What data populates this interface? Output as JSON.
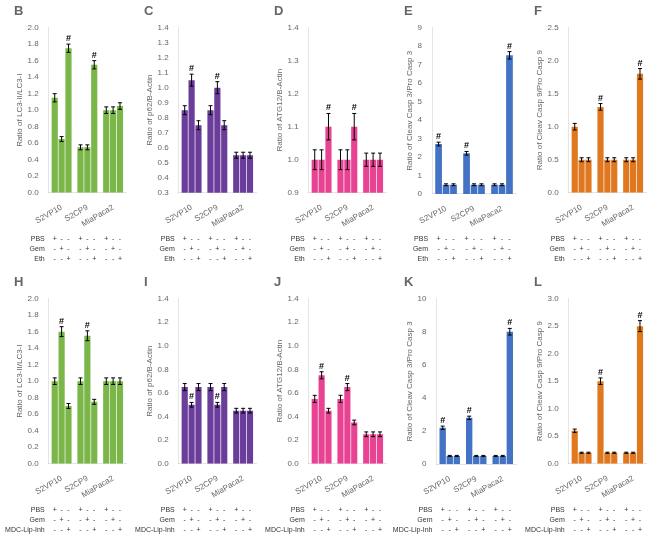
{
  "chart_data": [
    {
      "type": "bar",
      "title": "B",
      "ylabel": "Ratio of LC3-II/LC3-I",
      "categories": [
        "S2VP10",
        "S2CP9",
        "MiaPaca2"
      ],
      "series": [
        {
          "name": "PBS",
          "values": [
            1.15,
            0.55,
            1.0
          ],
          "errors": [
            0.05,
            0.03,
            0.04
          ]
        },
        {
          "name": "Gem",
          "values": [
            0.65,
            0.55,
            1.0
          ],
          "errors": [
            0.03,
            0.03,
            0.04
          ]
        },
        {
          "name": "Eth",
          "values": [
            1.75,
            1.55,
            1.05
          ],
          "errors": [
            0.05,
            0.05,
            0.04
          ]
        }
      ],
      "color": "#7ab648",
      "ylim": [
        0,
        2.0
      ],
      "yticks": [
        {
          "value": 0,
          "label": "0.0"
        },
        0.2,
        0.4,
        0.6,
        0.8,
        {
          "value": 1,
          "label": "1.0"
        },
        1.2,
        1.4,
        1.6,
        1.8,
        {
          "value": 2,
          "label": "2.0"
        }
      ],
      "grid": false,
      "sign_rows": [
        [
          "+",
          "-",
          "-",
          "+",
          "-",
          "-",
          "+",
          "-",
          "-"
        ],
        [
          "-",
          "+",
          "-",
          "-",
          "+",
          "-",
          "-",
          "+",
          "-"
        ],
        [
          "-",
          "-",
          "+",
          "-",
          "-",
          "+",
          "-",
          "-",
          "+"
        ]
      ],
      "annotations": [
        {
          "text": "#",
          "series": "Eth",
          "category": "S2VP10"
        },
        {
          "text": "#",
          "series": "Eth",
          "category": "S2CP9"
        }
      ]
    },
    {
      "type": "bar",
      "title": "C",
      "ylabel": "Ratio of p62/B-Actin",
      "categories": [
        "S2VP10",
        "S2CP9",
        "MiaPaca2"
      ],
      "series": [
        {
          "name": "PBS",
          "values": [
            0.85,
            0.85,
            0.55
          ],
          "errors": [
            0.03,
            0.03,
            0.02
          ]
        },
        {
          "name": "Gem",
          "values": [
            1.05,
            1.0,
            0.55
          ],
          "errors": [
            0.04,
            0.04,
            0.02
          ]
        },
        {
          "name": "Eth",
          "values": [
            0.75,
            0.75,
            0.55
          ],
          "errors": [
            0.03,
            0.03,
            0.02
          ]
        }
      ],
      "color": "#6a3d9a",
      "ylim": [
        0.3,
        1.4
      ],
      "yticks": [
        0.3,
        0.4,
        0.5,
        0.6,
        0.7,
        0.8,
        0.9,
        {
          "value": 1,
          "label": "1.0"
        },
        1.1,
        1.2,
        1.3,
        1.4
      ],
      "grid": false,
      "sign_rows": [
        [
          "+",
          "-",
          "-",
          "+",
          "-",
          "-",
          "+",
          "-",
          "-"
        ],
        [
          "-",
          "+",
          "-",
          "-",
          "+",
          "-",
          "-",
          "+",
          "-"
        ],
        [
          "-",
          "-",
          "+",
          "-",
          "-",
          "+",
          "-",
          "-",
          "+"
        ]
      ],
      "annotations": [
        {
          "text": "#",
          "series": "Gem",
          "category": "S2VP10"
        },
        {
          "text": "#",
          "series": "Gem",
          "category": "S2CP9"
        }
      ]
    },
    {
      "type": "bar",
      "title": "D",
      "ylabel": "Ratio of ATG12/B-Actin",
      "categories": [
        "S2VP10",
        "S2CP9",
        "MiaPaca2"
      ],
      "series": [
        {
          "name": "PBS",
          "values": [
            1.0,
            1.0,
            1.0
          ],
          "errors": [
            0.03,
            0.03,
            0.02
          ]
        },
        {
          "name": "Gem",
          "values": [
            1.0,
            1.0,
            1.0
          ],
          "errors": [
            0.03,
            0.03,
            0.02
          ]
        },
        {
          "name": "Eth",
          "values": [
            1.1,
            1.1,
            1.0
          ],
          "errors": [
            0.04,
            0.04,
            0.02
          ]
        }
      ],
      "color": "#e84393",
      "ylim": [
        0.9,
        1.4
      ],
      "yticks": [
        0.9,
        {
          "value": 1,
          "label": "1.0"
        },
        1.1,
        1.2,
        1.3,
        1.4
      ],
      "grid": false,
      "sign_rows": [
        [
          "+",
          "-",
          "-",
          "+",
          "-",
          "-",
          "+",
          "-",
          "-"
        ],
        [
          "-",
          "+",
          "-",
          "-",
          "+",
          "-",
          "-",
          "+",
          "-"
        ],
        [
          "-",
          "-",
          "+",
          "-",
          "-",
          "+",
          "-",
          "-",
          "+"
        ]
      ],
      "annotations": [
        {
          "text": "#",
          "series": "Eth",
          "category": "S2VP10"
        },
        {
          "text": "#",
          "series": "Eth",
          "category": "S2CP9"
        }
      ]
    },
    {
      "type": "bar",
      "title": "E",
      "ylabel": "Ratio of Cleav Casp 3/Pro Casp 3",
      "categories": [
        "S2VP10",
        "S2CP9",
        "MiaPaca2"
      ],
      "series": [
        {
          "name": "PBS",
          "values": [
            2.7,
            2.2,
            0.5
          ],
          "errors": [
            0.1,
            0.1,
            0.05
          ]
        },
        {
          "name": "Gem",
          "values": [
            0.5,
            0.5,
            0.5
          ],
          "errors": [
            0.05,
            0.05,
            0.05
          ]
        },
        {
          "name": "Eth",
          "values": [
            0.5,
            0.5,
            7.5
          ],
          "errors": [
            0.05,
            0.05,
            0.2
          ]
        }
      ],
      "color": "#4472c4",
      "ylim": [
        0,
        9
      ],
      "yticks": [
        0,
        1,
        2,
        3,
        4,
        5,
        6,
        7,
        8,
        9
      ],
      "grid": false,
      "sign_rows": [
        [
          "+",
          "-",
          "-",
          "+",
          "-",
          "-",
          "+",
          "-",
          "-"
        ],
        [
          "-",
          "+",
          "-",
          "-",
          "+",
          "-",
          "-",
          "+",
          "-"
        ],
        [
          "-",
          "-",
          "+",
          "-",
          "-",
          "+",
          "-",
          "-",
          "+"
        ]
      ],
      "annotations": [
        {
          "text": "#",
          "series": "PBS",
          "category": "S2VP10"
        },
        {
          "text": "#",
          "series": "PBS",
          "category": "S2CP9"
        },
        {
          "text": "#",
          "series": "Eth",
          "category": "MiaPaca2"
        }
      ]
    },
    {
      "type": "bar",
      "title": "F",
      "ylabel": "Ratio of Cleav Casp 9/Pro Casp 9",
      "categories": [
        "S2VP10",
        "S2CP9",
        "MiaPaca2"
      ],
      "series": [
        {
          "name": "PBS",
          "values": [
            1.0,
            1.3,
            0.5
          ],
          "errors": [
            0.05,
            0.05,
            0.03
          ]
        },
        {
          "name": "Gem",
          "values": [
            0.5,
            0.5,
            0.5
          ],
          "errors": [
            0.03,
            0.03,
            0.03
          ]
        },
        {
          "name": "Eth",
          "values": [
            0.5,
            0.5,
            1.8
          ],
          "errors": [
            0.03,
            0.03,
            0.08
          ]
        }
      ],
      "color": "#e07820",
      "ylim": [
        0,
        2.5
      ],
      "yticks": [
        {
          "value": 0,
          "label": "0.0"
        },
        0.5,
        {
          "value": 1,
          "label": "1.0"
        },
        1.5,
        {
          "value": 2,
          "label": "2.0"
        },
        2.5
      ],
      "grid": false,
      "sign_rows": [
        [
          "+",
          "-",
          "-",
          "+",
          "-",
          "-",
          "+",
          "-",
          "-"
        ],
        [
          "-",
          "+",
          "-",
          "-",
          "+",
          "-",
          "-",
          "+",
          "-"
        ],
        [
          "-",
          "-",
          "+",
          "-",
          "-",
          "+",
          "-",
          "-",
          "+"
        ]
      ],
      "annotations": [
        {
          "text": "#",
          "series": "PBS",
          "category": "S2CP9"
        },
        {
          "text": "#",
          "series": "Eth",
          "category": "MiaPaca2"
        }
      ]
    },
    {
      "type": "bar",
      "title": "H",
      "ylabel": "Ratio of LC3-II/LC3-I",
      "categories": [
        "S2VP10",
        "S2CP9",
        "MiaPaca2"
      ],
      "series": [
        {
          "name": "PBS",
          "values": [
            1.0,
            1.0,
            1.0
          ],
          "errors": [
            0.04,
            0.04,
            0.04
          ]
        },
        {
          "name": "Gem",
          "values": [
            1.6,
            1.55,
            1.0
          ],
          "errors": [
            0.06,
            0.06,
            0.04
          ]
        },
        {
          "name": "MDC-Lip-Inh",
          "values": [
            0.7,
            0.75,
            1.0
          ],
          "errors": [
            0.03,
            0.03,
            0.04
          ]
        }
      ],
      "color": "#7ab648",
      "ylim": [
        0,
        2.0
      ],
      "yticks": [
        {
          "value": 0,
          "label": "0.0"
        },
        0.2,
        0.4,
        0.6,
        0.8,
        {
          "value": 1,
          "label": "1.0"
        },
        1.2,
        1.4,
        1.6,
        1.8,
        {
          "value": 2,
          "label": "2.0"
        }
      ],
      "grid": false,
      "sign_rows": [
        [
          "+",
          "-",
          "-",
          "+",
          "-",
          "-",
          "+",
          "-",
          "-"
        ],
        [
          "-",
          "+",
          "-",
          "-",
          "+",
          "-",
          "-",
          "+",
          "-"
        ],
        [
          "-",
          "-",
          "+",
          "-",
          "-",
          "+",
          "-",
          "-",
          "+"
        ]
      ],
      "annotations": [
        {
          "text": "#",
          "series": "Gem",
          "category": "S2VP10"
        },
        {
          "text": "#",
          "series": "Gem",
          "category": "S2CP9"
        }
      ]
    },
    {
      "type": "bar",
      "title": "I",
      "ylabel": "Ratio of p62/B-Actin",
      "categories": [
        "S2VP10",
        "S2CP9",
        "MiaPaca2"
      ],
      "series": [
        {
          "name": "PBS",
          "values": [
            0.65,
            0.65,
            0.45
          ],
          "errors": [
            0.03,
            0.03,
            0.02
          ]
        },
        {
          "name": "Gem",
          "values": [
            0.5,
            0.5,
            0.45
          ],
          "errors": [
            0.02,
            0.02,
            0.02
          ]
        },
        {
          "name": "MDC-Lip-Inh",
          "values": [
            0.65,
            0.65,
            0.45
          ],
          "errors": [
            0.03,
            0.03,
            0.02
          ]
        }
      ],
      "color": "#6a3d9a",
      "ylim": [
        0,
        1.4
      ],
      "yticks": [
        {
          "value": 0,
          "label": "0.0"
        },
        0.2,
        0.4,
        0.6,
        0.8,
        {
          "value": 1,
          "label": "1.0"
        },
        1.2,
        1.4
      ],
      "grid": false,
      "sign_rows": [
        [
          "+",
          "-",
          "-",
          "+",
          "-",
          "-",
          "+",
          "-",
          "-"
        ],
        [
          "-",
          "+",
          "-",
          "-",
          "+",
          "-",
          "-",
          "+",
          "-"
        ],
        [
          "-",
          "-",
          "+",
          "-",
          "-",
          "+",
          "-",
          "-",
          "+"
        ]
      ],
      "annotations": [
        {
          "text": "#",
          "series": "Gem",
          "category": "S2VP10"
        },
        {
          "text": "#",
          "series": "Gem",
          "category": "S2CP9"
        }
      ]
    },
    {
      "type": "bar",
      "title": "J",
      "ylabel": "Ratio of ATG12/B-Actin",
      "categories": [
        "S2VP10",
        "S2CP9",
        "MiaPaca2"
      ],
      "series": [
        {
          "name": "PBS",
          "values": [
            0.55,
            0.55,
            0.25
          ],
          "errors": [
            0.03,
            0.03,
            0.02
          ]
        },
        {
          "name": "Gem",
          "values": [
            0.75,
            0.65,
            0.25
          ],
          "errors": [
            0.03,
            0.03,
            0.02
          ]
        },
        {
          "name": "MDC-Lip-Inh",
          "values": [
            0.45,
            0.35,
            0.25
          ],
          "errors": [
            0.02,
            0.02,
            0.02
          ]
        }
      ],
      "color": "#e84393",
      "ylim": [
        0,
        1.4
      ],
      "yticks": [
        {
          "value": 0,
          "label": "0.0"
        },
        0.2,
        0.4,
        0.6,
        0.8,
        {
          "value": 1,
          "label": "1.0"
        },
        1.2,
        1.4
      ],
      "grid": false,
      "sign_rows": [
        [
          "+",
          "-",
          "-",
          "+",
          "-",
          "-",
          "+",
          "-",
          "-"
        ],
        [
          "-",
          "+",
          "-",
          "-",
          "+",
          "-",
          "-",
          "+",
          "-"
        ],
        [
          "-",
          "-",
          "+",
          "-",
          "-",
          "+",
          "-",
          "-",
          "+"
        ]
      ],
      "annotations": [
        {
          "text": "#",
          "series": "Gem",
          "category": "S2VP10"
        },
        {
          "text": "#",
          "series": "Gem",
          "category": "S2CP9"
        }
      ]
    },
    {
      "type": "bar",
      "title": "K",
      "ylabel": "Ratio of Cleav Casp 3/Pro Casp 3",
      "categories": [
        "S2VP10",
        "S2CP9",
        "MiaPaca2"
      ],
      "series": [
        {
          "name": "PBS",
          "values": [
            2.2,
            2.8,
            0.5
          ],
          "errors": [
            0.1,
            0.1,
            0.03
          ]
        },
        {
          "name": "Gem",
          "values": [
            0.5,
            0.5,
            0.5
          ],
          "errors": [
            0.03,
            0.03,
            0.03
          ]
        },
        {
          "name": "MDC-Lip-Inh",
          "values": [
            0.5,
            0.5,
            8.0
          ],
          "errors": [
            0.03,
            0.03,
            0.2
          ]
        }
      ],
      "color": "#4472c4",
      "ylim": [
        0,
        10
      ],
      "yticks": [
        0,
        2,
        4,
        6,
        8,
        10
      ],
      "grid": false,
      "sign_rows": [
        [
          "+",
          "-",
          "-",
          "+",
          "-",
          "-",
          "+",
          "-",
          "-"
        ],
        [
          "-",
          "+",
          "-",
          "-",
          "+",
          "-",
          "-",
          "+",
          "-"
        ],
        [
          "-",
          "-",
          "+",
          "-",
          "-",
          "+",
          "-",
          "-",
          "+"
        ]
      ],
      "annotations": [
        {
          "text": "#",
          "series": "PBS",
          "category": "S2VP10"
        },
        {
          "text": "#",
          "series": "PBS",
          "category": "S2CP9"
        },
        {
          "text": "#",
          "series": "MDC-Lip-Inh",
          "category": "MiaPaca2"
        }
      ]
    },
    {
      "type": "bar",
      "title": "L",
      "ylabel": "Ratio of Cleav Casp 9/Pro Casp 9",
      "categories": [
        "S2VP10",
        "S2CP9",
        "MiaPaca2"
      ],
      "series": [
        {
          "name": "PBS",
          "values": [
            0.6,
            1.5,
            0.2
          ],
          "errors": [
            0.03,
            0.06,
            0.01
          ]
        },
        {
          "name": "Gem",
          "values": [
            0.2,
            0.2,
            0.2
          ],
          "errors": [
            0.01,
            0.01,
            0.01
          ]
        },
        {
          "name": "MDC-Lip-Inh",
          "values": [
            0.2,
            0.2,
            2.5
          ],
          "errors": [
            0.01,
            0.01,
            0.1
          ]
        }
      ],
      "color": "#e07820",
      "ylim": [
        0,
        3.0
      ],
      "yticks": [
        {
          "value": 0,
          "label": "0.0"
        },
        0.5,
        {
          "value": 1,
          "label": "1.0"
        },
        1.5,
        {
          "value": 2,
          "label": "2.0"
        },
        2.5,
        {
          "value": 3,
          "label": "3.0"
        }
      ],
      "grid": false,
      "sign_rows": [
        [
          "+",
          "-",
          "-",
          "+",
          "-",
          "-",
          "+",
          "-",
          "-"
        ],
        [
          "-",
          "+",
          "-",
          "-",
          "+",
          "-",
          "-",
          "+",
          "-"
        ],
        [
          "-",
          "-",
          "+",
          "-",
          "-",
          "+",
          "-",
          "-",
          "+"
        ]
      ],
      "annotations": [
        {
          "text": "#",
          "series": "PBS",
          "category": "S2CP9"
        },
        {
          "text": "#",
          "series": "MDC-Lip-Inh",
          "category": "MiaPaca2"
        }
      ]
    }
  ]
}
